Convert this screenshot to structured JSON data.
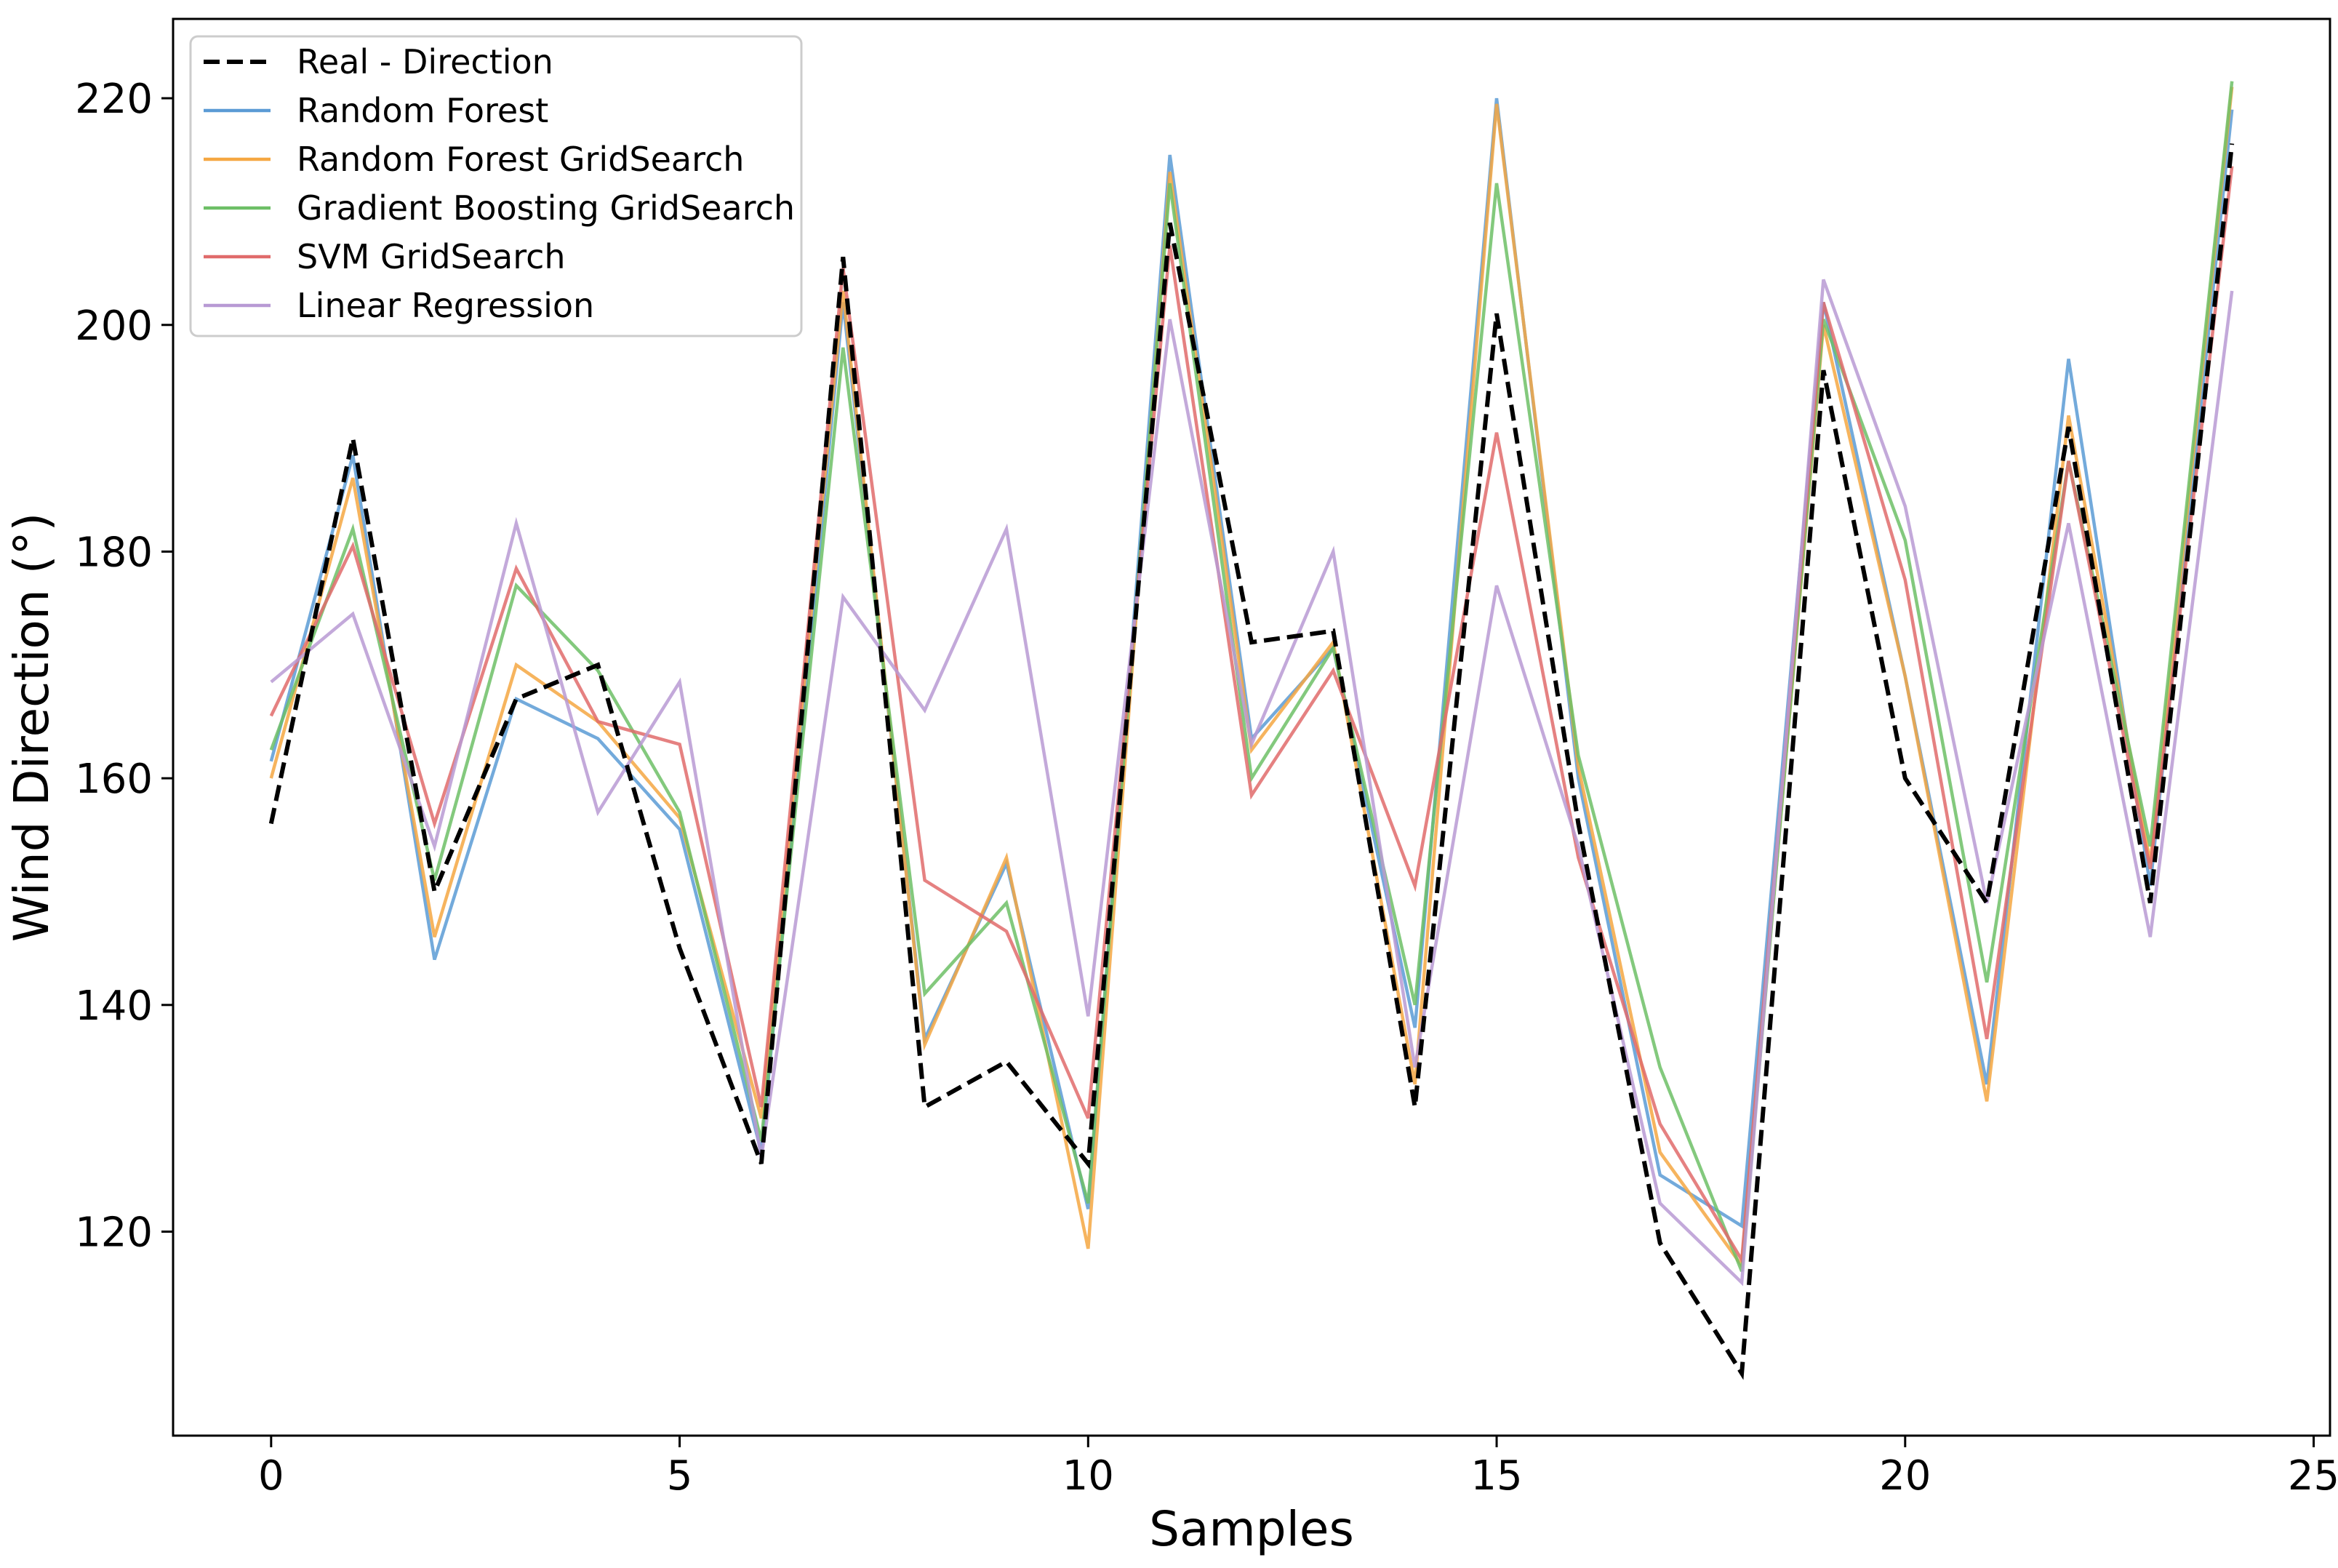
{
  "chart_data": {
    "type": "line",
    "title": "",
    "xlabel": "Samples",
    "ylabel": "Wind Direction (°)",
    "xlim": [
      -1.2,
      25.2
    ],
    "ylim": [
      102,
      227
    ],
    "xticks": [
      0,
      5,
      10,
      15,
      20,
      25
    ],
    "yticks": [
      120,
      140,
      160,
      180,
      200,
      220
    ],
    "legend_position": "upper-left",
    "x": [
      0,
      1,
      2,
      3,
      4,
      5,
      6,
      7,
      8,
      9,
      10,
      11,
      12,
      13,
      14,
      15,
      16,
      17,
      18,
      19,
      20,
      21,
      22,
      23,
      24
    ],
    "series": [
      {
        "name": "Real - Direction",
        "color": "#000000",
        "style": "dashed",
        "values": [
          156,
          190,
          150,
          167,
          170,
          145,
          126,
          206,
          131,
          135,
          126,
          209,
          172,
          173,
          131,
          201,
          156,
          119,
          107.5,
          196,
          160,
          149,
          191,
          149,
          216
        ]
      },
      {
        "name": "Random Forest",
        "color": "#5b9bd5",
        "style": "solid",
        "values": [
          161.5,
          188.5,
          144,
          167,
          163.5,
          155.5,
          127,
          202,
          137,
          152.5,
          122,
          215,
          163.5,
          171.5,
          138,
          220,
          160,
          125,
          120.5,
          202,
          169,
          133,
          197,
          150.5,
          219
        ]
      },
      {
        "name": "Random Forest GridSearch",
        "color": "#f5a742",
        "style": "solid",
        "values": [
          160,
          186.5,
          146,
          170,
          165,
          156.5,
          130,
          203,
          136.5,
          153,
          118.5,
          213.5,
          162.5,
          172,
          133,
          219.5,
          161,
          127,
          117,
          200,
          169,
          131.5,
          192,
          152.5,
          221
        ]
      },
      {
        "name": "Gradient Boosting GridSearch",
        "color": "#6dbf66",
        "style": "solid",
        "values": [
          162.5,
          182,
          151,
          177,
          169.5,
          157,
          128,
          198,
          141,
          149,
          122.5,
          212.5,
          160,
          171.5,
          140,
          212.5,
          162,
          134.5,
          116.5,
          200.5,
          181,
          142,
          188,
          154,
          221.5
        ]
      },
      {
        "name": "SVM GridSearch",
        "color": "#e06b6b",
        "style": "solid",
        "values": [
          165.5,
          180.5,
          156,
          178.5,
          165,
          163,
          131,
          205,
          151,
          146.5,
          130,
          207,
          158.5,
          169.5,
          150.5,
          190.5,
          153,
          129.5,
          117.5,
          202,
          177.5,
          137,
          188,
          152,
          214
        ]
      },
      {
        "name": "Linear Regression",
        "color": "#b89ad4",
        "style": "solid",
        "values": [
          168.5,
          174.5,
          154,
          182.5,
          157,
          168.5,
          126.5,
          176,
          166,
          182,
          139,
          200.5,
          163,
          180,
          134.5,
          177,
          154,
          122.5,
          115.5,
          204,
          184,
          149,
          182.5,
          146,
          203
        ]
      }
    ]
  }
}
